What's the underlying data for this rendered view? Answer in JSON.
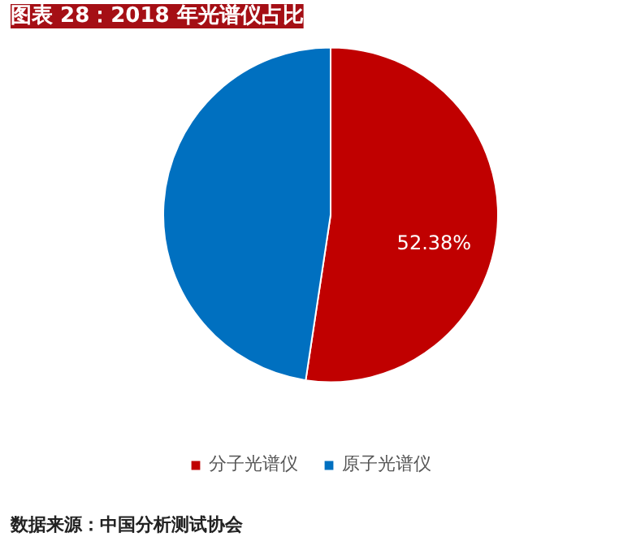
{
  "chart_data": {
    "type": "pie",
    "title": "图表 28：2018 年光谱仪占比",
    "categories": [
      "分子光谱仪",
      "原子光谱仪"
    ],
    "values": [
      52.38,
      47.62
    ],
    "colors": [
      "#c00000",
      "#0070c0"
    ],
    "value_labels": [
      "52.38%",
      null
    ],
    "legend": "bottom",
    "annotations": [
      "数据来源：中国分析测试协会"
    ]
  }
}
